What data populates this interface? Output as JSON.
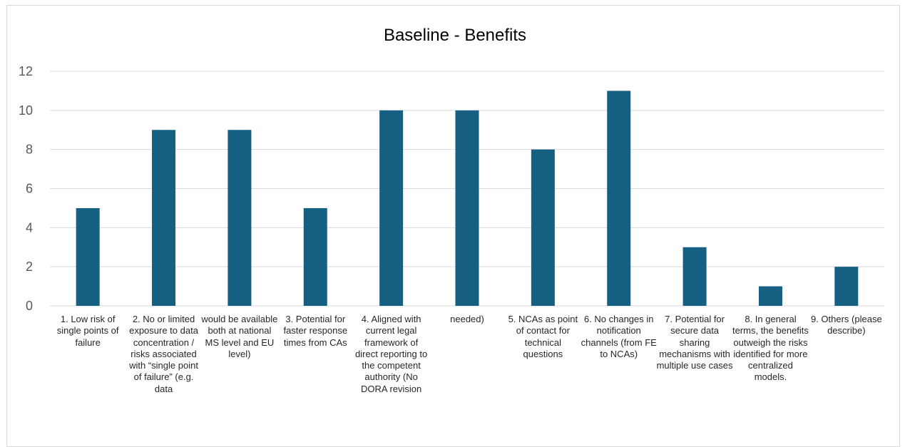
{
  "chart_data": {
    "type": "bar",
    "title": "Baseline - Benefits",
    "xlabel": "",
    "ylabel": "",
    "ylim": [
      0,
      12
    ],
    "yticks": [
      0,
      2,
      4,
      6,
      8,
      10,
      12
    ],
    "grid": true,
    "color": "#145f82",
    "categories": [
      "1. Low risk of single points of failure",
      "2. No or limited exposure to data concentration / risks associated with “single point of failure” (e.g. data",
      "would be available both at national MS level and EU level)",
      "3. Potential for faster response times from CAs",
      "4. Aligned with current legal framework of direct reporting to the competent authority (No DORA revision",
      "needed)",
      "5. NCAs as point of contact for technical questions",
      "6. No changes in notification channels (from FE to NCAs)",
      "7. Potential for secure data sharing mechanisms with multiple use cases",
      "8. In general terms, the benefits outweigh the risks identified for more centralized models.",
      "9. Others (please describe)"
    ],
    "values": [
      5,
      9,
      9,
      5,
      10,
      10,
      8,
      11,
      3,
      1,
      2
    ]
  }
}
